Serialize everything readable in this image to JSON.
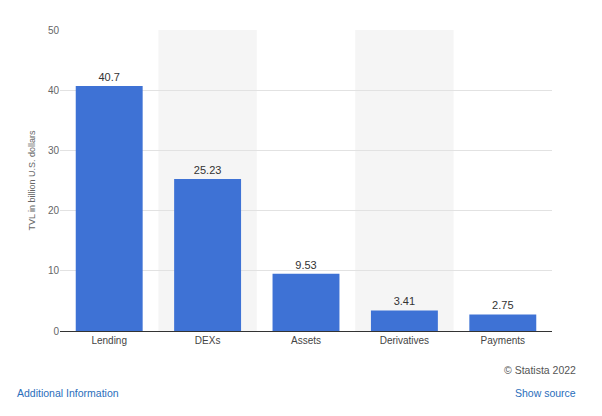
{
  "chart_data": {
    "type": "bar",
    "categories": [
      "Lending",
      "DEXs",
      "Assets",
      "Derivatives",
      "Payments"
    ],
    "values": [
      40.7,
      25.23,
      9.53,
      3.41,
      2.75
    ],
    "color": "#3e72d5",
    "y_label": "TVL in billion U.S. dollars",
    "ylim": [
      0,
      50
    ],
    "yticks": [
      0,
      10,
      20,
      30,
      40,
      50
    ],
    "grid": true,
    "data_labels": true,
    "annotations": [
      "© Statista 2022",
      "Additional Information",
      "Show source"
    ]
  }
}
